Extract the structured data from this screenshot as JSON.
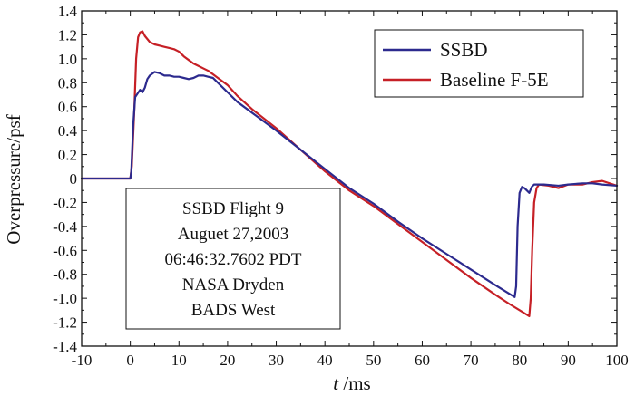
{
  "chart_data": {
    "type": "line",
    "title": "",
    "xlabel_italic": "t",
    "xlabel_rest": " /ms",
    "ylabel": "Overpressure/psf",
    "xlim": [
      -10,
      100
    ],
    "ylim": [
      -1.4,
      1.4
    ],
    "x_ticks": [
      -10,
      0,
      10,
      20,
      30,
      40,
      50,
      60,
      70,
      80,
      90,
      100
    ],
    "y_ticks": [
      1.4,
      1.2,
      1.0,
      0.8,
      0.6,
      0.4,
      0.2,
      0,
      -0.2,
      -0.4,
      -0.6,
      -0.8,
      -1.0,
      -1.2,
      -1.4
    ],
    "y_tick_labels": [
      "1.4",
      "1.2",
      "1.0",
      "0.8",
      "0.6",
      "0.4",
      "0.2",
      "0",
      "-0.2",
      "-0.4",
      "-0.6",
      "-0.8",
      "-1.0",
      "-1.2",
      "-1.4"
    ],
    "grid": false,
    "legend": "top-right",
    "series": [
      {
        "name": "SSBD",
        "color": "#2c2a8e",
        "points": [
          [
            -10,
            0
          ],
          [
            0,
            0
          ],
          [
            0.2,
            0.06
          ],
          [
            0.6,
            0.45
          ],
          [
            1,
            0.68
          ],
          [
            1.5,
            0.71
          ],
          [
            2,
            0.74
          ],
          [
            2.5,
            0.72
          ],
          [
            3,
            0.76
          ],
          [
            3.5,
            0.83
          ],
          [
            4,
            0.86
          ],
          [
            5,
            0.89
          ],
          [
            6,
            0.88
          ],
          [
            7,
            0.86
          ],
          [
            8,
            0.86
          ],
          [
            9,
            0.85
          ],
          [
            10,
            0.85
          ],
          [
            11,
            0.84
          ],
          [
            12,
            0.83
          ],
          [
            13,
            0.84
          ],
          [
            14,
            0.86
          ],
          [
            15,
            0.86
          ],
          [
            16,
            0.85
          ],
          [
            17,
            0.84
          ],
          [
            18,
            0.8
          ],
          [
            20,
            0.72
          ],
          [
            22,
            0.64
          ],
          [
            25,
            0.55
          ],
          [
            30,
            0.4
          ],
          [
            35,
            0.24
          ],
          [
            40,
            0.08
          ],
          [
            45,
            -0.08
          ],
          [
            50,
            -0.21
          ],
          [
            55,
            -0.36
          ],
          [
            60,
            -0.5
          ],
          [
            65,
            -0.63
          ],
          [
            70,
            -0.76
          ],
          [
            75,
            -0.89
          ],
          [
            79,
            -0.99
          ],
          [
            79.3,
            -0.9
          ],
          [
            79.6,
            -0.4
          ],
          [
            80,
            -0.12
          ],
          [
            80.5,
            -0.07
          ],
          [
            81,
            -0.08
          ],
          [
            81.5,
            -0.1
          ],
          [
            82,
            -0.12
          ],
          [
            82.5,
            -0.07
          ],
          [
            83,
            -0.05
          ],
          [
            85,
            -0.05
          ],
          [
            88,
            -0.06
          ],
          [
            90,
            -0.05
          ],
          [
            93,
            -0.04
          ],
          [
            95,
            -0.04
          ],
          [
            97,
            -0.05
          ],
          [
            100,
            -0.06
          ]
        ]
      },
      {
        "name": "Baseline F-5E",
        "color": "#c62026",
        "points": [
          [
            -10,
            0
          ],
          [
            0,
            0
          ],
          [
            0.3,
            0.1
          ],
          [
            0.8,
            0.55
          ],
          [
            1.2,
            1.0
          ],
          [
            1.6,
            1.18
          ],
          [
            2,
            1.22
          ],
          [
            2.5,
            1.23
          ],
          [
            3,
            1.19
          ],
          [
            4,
            1.14
          ],
          [
            5,
            1.12
          ],
          [
            6,
            1.11
          ],
          [
            7,
            1.1
          ],
          [
            8,
            1.09
          ],
          [
            9,
            1.08
          ],
          [
            10,
            1.06
          ],
          [
            11,
            1.02
          ],
          [
            12,
            0.99
          ],
          [
            13,
            0.96
          ],
          [
            14,
            0.94
          ],
          [
            15,
            0.92
          ],
          [
            16,
            0.9
          ],
          [
            17,
            0.87
          ],
          [
            18,
            0.84
          ],
          [
            20,
            0.78
          ],
          [
            22,
            0.69
          ],
          [
            25,
            0.58
          ],
          [
            30,
            0.42
          ],
          [
            35,
            0.24
          ],
          [
            40,
            0.06
          ],
          [
            45,
            -0.1
          ],
          [
            50,
            -0.23
          ],
          [
            55,
            -0.38
          ],
          [
            60,
            -0.53
          ],
          [
            65,
            -0.68
          ],
          [
            70,
            -0.83
          ],
          [
            75,
            -0.97
          ],
          [
            78,
            -1.05
          ],
          [
            80,
            -1.1
          ],
          [
            82,
            -1.15
          ],
          [
            82.3,
            -1.0
          ],
          [
            82.6,
            -0.6
          ],
          [
            83,
            -0.2
          ],
          [
            83.5,
            -0.08
          ],
          [
            84,
            -0.05
          ],
          [
            86,
            -0.06
          ],
          [
            88,
            -0.08
          ],
          [
            90,
            -0.05
          ],
          [
            93,
            -0.05
          ],
          [
            95,
            -0.03
          ],
          [
            97,
            -0.02
          ],
          [
            100,
            -0.06
          ]
        ]
      }
    ],
    "annotation_lines": [
      "SSBD Flight 9",
      "Auguet 27,2003",
      "06:46:32.7602 PDT",
      "NASA Dryden",
      "BADS West"
    ]
  }
}
